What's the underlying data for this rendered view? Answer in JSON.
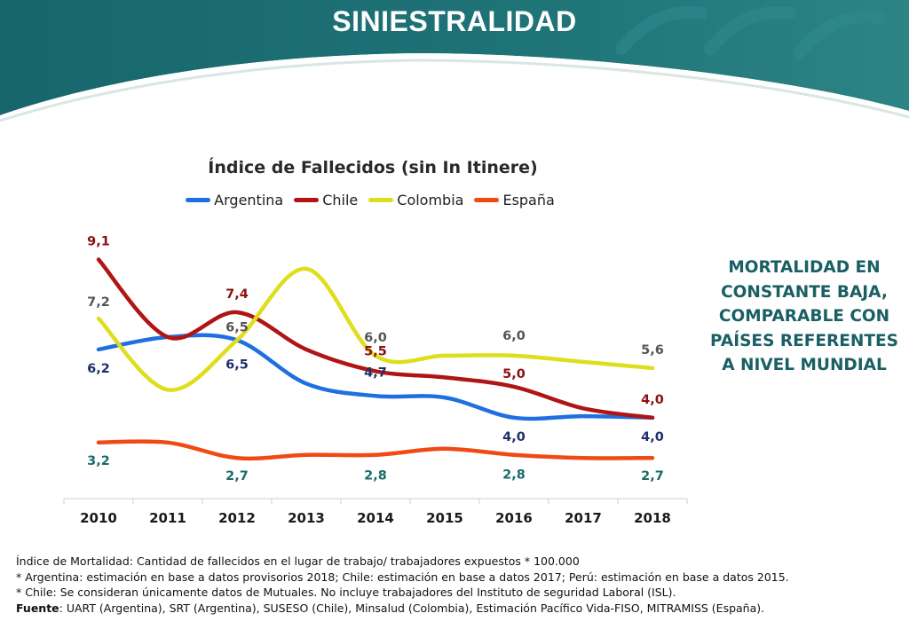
{
  "page": {
    "title": "SINIESTRALIDAD",
    "side_note": "MORTALIDAD EN CONSTANTE BAJA, COMPARABLE CON PAÍSES REFERENTES A NIVEL MUNDIAL"
  },
  "footnotes": {
    "line1": "Índice de Mortalidad: Cantidad de fallecidos en el lugar de trabajo/ trabajadores expuestos * 100.000",
    "line2": "* Argentina: estimación en base a datos provisorios 2018; Chile: estimación en base a datos 2017; Perú: estimación en base a datos 2015.",
    "line3": "* Chile: Se consideran únicamente datos de Mutuales. No incluye trabajadores del Instituto de seguridad Laboral (ISL).",
    "source_label": "Fuente",
    "source_text": ": UART (Argentina), SRT (Argentina), SUSESO (Chile), Minsalud (Colombia), Estimación Pacífico Vida-FISO, MITRAMISS (España)."
  },
  "colors": {
    "banner": "#1c6b70",
    "accent_text": "#1a5f63"
  },
  "chart_data": {
    "type": "line",
    "title": "Índice de Fallecidos (sin In Itinere)",
    "categories": [
      "2010",
      "2011",
      "2012",
      "2013",
      "2014",
      "2015",
      "2016",
      "2017",
      "2018"
    ],
    "xlabel": "",
    "ylabel": "",
    "ylim": [
      0,
      10
    ],
    "legend_position": "top",
    "grid": false,
    "smooth": true,
    "series": [
      {
        "name": "Argentina",
        "color": "#1f6fe0",
        "label_color": "#1f2f6b",
        "values": [
          6.2,
          6.6,
          6.5,
          5.1,
          4.7,
          4.65,
          4.0,
          4.05,
          4.0
        ],
        "labels": {
          "0": "6,2",
          "2": "6,5",
          "4": "4,7",
          "6": "4,0",
          "8": "4,0"
        }
      },
      {
        "name": "Chile",
        "color": "#b01515",
        "label_color": "#8b1010",
        "values": [
          9.1,
          6.6,
          7.4,
          6.2,
          5.5,
          5.3,
          5.0,
          4.3,
          4.0
        ],
        "labels": {
          "0": "9,1",
          "2": "7,4",
          "4": "5,5",
          "6": "5,0",
          "8": "4,0"
        }
      },
      {
        "name": "Colombia",
        "color": "#dede1e",
        "label_color": "#555555",
        "values": [
          7.2,
          4.9,
          6.5,
          8.8,
          6.0,
          6.0,
          6.0,
          5.8,
          5.6
        ],
        "labels": {
          "0": "7,2",
          "2": "6,5",
          "4": "6,0",
          "6": "6,0",
          "8": "5,6"
        }
      },
      {
        "name": "España",
        "color": "#f04a14",
        "label_color": "#1b6b6b",
        "values": [
          3.2,
          3.2,
          2.7,
          2.8,
          2.8,
          3.0,
          2.8,
          2.7,
          2.7
        ],
        "labels": {
          "0": "3,2",
          "2": "2,7",
          "4": "2,8",
          "6": "2,8",
          "8": "2,7"
        }
      }
    ]
  }
}
